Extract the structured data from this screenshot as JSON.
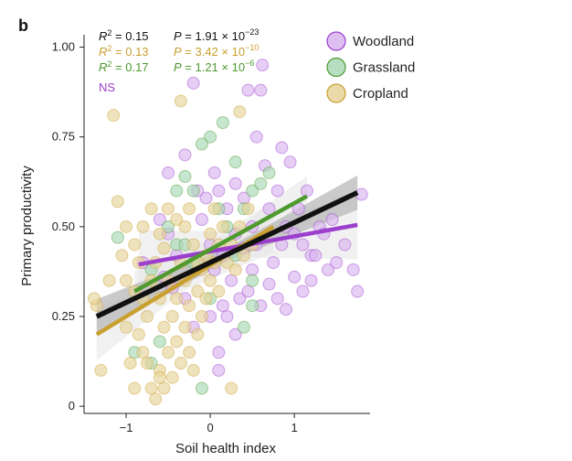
{
  "panel_label": "b",
  "colors": {
    "woodland": "#9b3fcc",
    "woodland_fill": "#d9b3f0",
    "grassland": "#4e9a2e",
    "grassland_fill": "#a9d8b6",
    "cropland": "#c9a030",
    "cropland_fill": "#e6d49a",
    "overall": "#111111"
  },
  "stats": [
    {
      "r2": "R",
      "r2_value": "2 = 0.15",
      "p": "P = 1.91 × 10",
      "p_exp": "−23",
      "color": "#111111"
    },
    {
      "r2": "R",
      "r2_value": "2 = 0.13",
      "p": "P = 3.42 × 10",
      "p_exp": "−10",
      "color": "#c9a030"
    },
    {
      "r2": "R",
      "r2_value": "2 = 0.17",
      "p": "P = 1.21 × 10",
      "p_exp": "−6",
      "color": "#4e9a2e"
    }
  ],
  "ns_label": "NS",
  "chart_data": {
    "type": "scatter",
    "title": "",
    "xlabel": "Soil health index",
    "ylabel": "Primary productivity",
    "xlim": [
      -1.5,
      1.9
    ],
    "ylim": [
      -0.02,
      1.06
    ],
    "x_ticks": [
      -1,
      0,
      1
    ],
    "x_tick_labels": [
      "−1",
      "0",
      "1"
    ],
    "y_ticks": [
      0,
      0.25,
      0.5,
      0.75,
      1.0
    ],
    "y_tick_labels": [
      "0",
      "0.25",
      "0.50",
      "0.75",
      "1.00"
    ],
    "legend": {
      "placement": "top-right",
      "entries": [
        "Woodland",
        "Grassland",
        "Cropland"
      ]
    },
    "series": [
      {
        "name": "Woodland",
        "points": [
          [
            -0.2,
            0.9
          ],
          [
            0.45,
            0.88
          ],
          [
            0.6,
            0.88
          ],
          [
            0.62,
            0.95
          ],
          [
            -0.5,
            0.65
          ],
          [
            -0.3,
            0.7
          ],
          [
            0.1,
            0.6
          ],
          [
            0.2,
            0.55
          ],
          [
            0.3,
            0.62
          ],
          [
            0.4,
            0.58
          ],
          [
            0.5,
            0.5
          ],
          [
            0.55,
            0.45
          ],
          [
            0.7,
            0.55
          ],
          [
            0.8,
            0.6
          ],
          [
            0.9,
            0.5
          ],
          [
            1.0,
            0.48
          ],
          [
            1.1,
            0.45
          ],
          [
            1.2,
            0.42
          ],
          [
            1.3,
            0.5
          ],
          [
            1.4,
            0.38
          ],
          [
            1.5,
            0.4
          ],
          [
            1.6,
            0.45
          ],
          [
            1.7,
            0.38
          ],
          [
            1.75,
            0.32
          ],
          [
            1.8,
            0.59
          ],
          [
            0.0,
            0.45
          ],
          [
            -0.1,
            0.52
          ],
          [
            0.05,
            0.38
          ],
          [
            0.15,
            0.42
          ],
          [
            0.25,
            0.35
          ],
          [
            0.35,
            0.3
          ],
          [
            0.45,
            0.32
          ],
          [
            0.6,
            0.28
          ],
          [
            0.7,
            0.34
          ],
          [
            0.8,
            0.3
          ],
          [
            0.9,
            0.27
          ],
          [
            1.0,
            0.36
          ],
          [
            1.1,
            0.32
          ],
          [
            0.2,
            0.25
          ],
          [
            0.3,
            0.2
          ],
          [
            0.1,
            0.15
          ],
          [
            -0.2,
            0.22
          ],
          [
            -0.3,
            0.3
          ],
          [
            -0.4,
            0.42
          ],
          [
            -0.5,
            0.48
          ],
          [
            -0.6,
            0.52
          ],
          [
            -0.55,
            0.36
          ],
          [
            -0.8,
            0.4
          ],
          [
            1.2,
            0.35
          ],
          [
            1.35,
            0.48
          ],
          [
            1.45,
            0.52
          ],
          [
            0.85,
            0.72
          ],
          [
            0.95,
            0.68
          ],
          [
            0.55,
            0.75
          ],
          [
            0.65,
            0.67
          ],
          [
            0.05,
            0.65
          ],
          [
            -0.05,
            0.58
          ],
          [
            0.3,
            0.48
          ],
          [
            0.4,
            0.44
          ],
          [
            0.5,
            0.38
          ],
          [
            1.05,
            0.55
          ],
          [
            1.15,
            0.6
          ],
          [
            1.25,
            0.42
          ],
          [
            -0.45,
            0.33
          ],
          [
            0.1,
            0.1
          ],
          [
            0.0,
            0.25
          ],
          [
            0.15,
            0.28
          ],
          [
            -0.15,
            0.6
          ],
          [
            0.75,
            0.4
          ],
          [
            0.85,
            0.45
          ]
        ]
      },
      {
        "name": "Grassland",
        "points": [
          [
            0.15,
            0.79
          ],
          [
            0.0,
            0.75
          ],
          [
            -0.1,
            0.73
          ],
          [
            -0.3,
            0.64
          ],
          [
            -0.2,
            0.6
          ],
          [
            0.3,
            0.68
          ],
          [
            0.5,
            0.6
          ],
          [
            0.6,
            0.62
          ],
          [
            0.4,
            0.55
          ],
          [
            -0.5,
            0.5
          ],
          [
            -0.4,
            0.45
          ],
          [
            -0.2,
            0.4
          ],
          [
            0.0,
            0.3
          ],
          [
            0.4,
            0.22
          ],
          [
            -0.6,
            0.18
          ],
          [
            -0.7,
            0.12
          ],
          [
            -0.9,
            0.15
          ],
          [
            -1.1,
            0.47
          ],
          [
            -0.3,
            0.45
          ],
          [
            0.2,
            0.5
          ],
          [
            0.7,
            0.65
          ],
          [
            -0.1,
            0.05
          ],
          [
            0.5,
            0.35
          ],
          [
            -0.7,
            0.38
          ],
          [
            0.1,
            0.55
          ],
          [
            -0.4,
            0.6
          ],
          [
            0.3,
            0.42
          ],
          [
            0.5,
            0.28
          ]
        ]
      },
      {
        "name": "Cropland",
        "points": [
          [
            -1.15,
            0.81
          ],
          [
            -0.35,
            0.85
          ],
          [
            0.35,
            0.82
          ],
          [
            -1.35,
            0.28
          ],
          [
            -1.38,
            0.3
          ],
          [
            -1.3,
            0.1
          ],
          [
            -1.1,
            0.57
          ],
          [
            -1.05,
            0.42
          ],
          [
            -1.0,
            0.22
          ],
          [
            -0.95,
            0.12
          ],
          [
            -0.9,
            0.05
          ],
          [
            -0.85,
            0.2
          ],
          [
            -0.8,
            0.3
          ],
          [
            -0.8,
            0.15
          ],
          [
            -0.75,
            0.25
          ],
          [
            -0.7,
            0.05
          ],
          [
            -0.7,
            0.35
          ],
          [
            -0.65,
            0.4
          ],
          [
            -0.6,
            0.1
          ],
          [
            -0.6,
            0.3
          ],
          [
            -0.55,
            0.22
          ],
          [
            -0.55,
            0.05
          ],
          [
            -0.5,
            0.15
          ],
          [
            -0.5,
            0.35
          ],
          [
            -0.45,
            0.25
          ],
          [
            -0.45,
            0.08
          ],
          [
            -0.4,
            0.3
          ],
          [
            -0.4,
            0.18
          ],
          [
            -0.35,
            0.4
          ],
          [
            -0.35,
            0.12
          ],
          [
            -0.3,
            0.22
          ],
          [
            -0.3,
            0.35
          ],
          [
            -0.25,
            0.28
          ],
          [
            -0.25,
            0.15
          ],
          [
            -0.2,
            0.45
          ],
          [
            -0.2,
            0.1
          ],
          [
            -0.15,
            0.32
          ],
          [
            -0.15,
            0.2
          ],
          [
            -0.1,
            0.38
          ],
          [
            -0.1,
            0.25
          ],
          [
            -0.05,
            0.42
          ],
          [
            -0.05,
            0.3
          ],
          [
            0.0,
            0.48
          ],
          [
            0.0,
            0.35
          ],
          [
            0.05,
            0.4
          ],
          [
            0.1,
            0.45
          ],
          [
            0.1,
            0.32
          ],
          [
            0.15,
            0.5
          ],
          [
            0.2,
            0.4
          ],
          [
            0.25,
            0.45
          ],
          [
            0.3,
            0.38
          ],
          [
            0.35,
            0.5
          ],
          [
            0.4,
            0.42
          ],
          [
            0.45,
            0.55
          ],
          [
            0.5,
            0.45
          ],
          [
            -1.2,
            0.35
          ],
          [
            -1.0,
            0.5
          ],
          [
            -0.9,
            0.45
          ],
          [
            -0.8,
            0.5
          ],
          [
            -0.7,
            0.55
          ],
          [
            -0.6,
            0.48
          ],
          [
            -0.5,
            0.55
          ],
          [
            -0.4,
            0.52
          ],
          [
            -0.3,
            0.5
          ],
          [
            -0.9,
            0.32
          ],
          [
            -1.0,
            0.35
          ],
          [
            -0.65,
            0.02
          ],
          [
            -0.6,
            0.08
          ],
          [
            -0.75,
            0.12
          ],
          [
            0.25,
            0.05
          ],
          [
            -0.85,
            0.4
          ],
          [
            -0.55,
            0.44
          ],
          [
            -0.25,
            0.55
          ],
          [
            0.05,
            0.55
          ],
          [
            -0.15,
            0.4
          ]
        ]
      }
    ],
    "fits": [
      {
        "name": "Woodland",
        "x": [
          -0.85,
          1.75
        ],
        "y": [
          0.395,
          0.505
        ]
      },
      {
        "name": "Grassland",
        "x": [
          -0.9,
          1.15
        ],
        "y": [
          0.32,
          0.585
        ]
      },
      {
        "name": "Cropland",
        "x": [
          -1.35,
          0.75
        ],
        "y": [
          0.2,
          0.5
        ]
      },
      {
        "name": "Overall",
        "x": [
          -1.35,
          1.75
        ],
        "y": [
          0.25,
          0.595
        ]
      }
    ],
    "annotations": [
      "NS"
    ]
  }
}
